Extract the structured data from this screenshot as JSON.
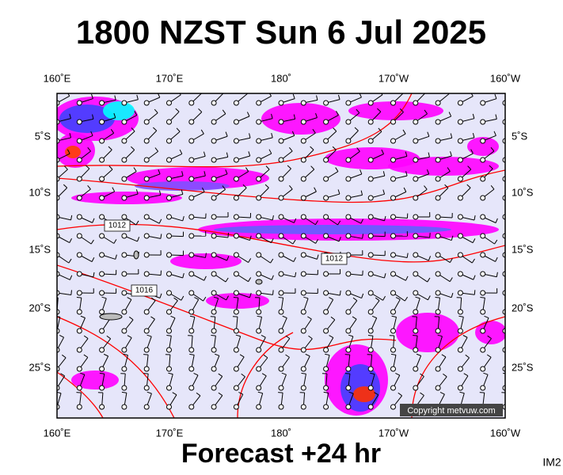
{
  "header": {
    "title": "1800 NZST Sun 6 Jul 2025"
  },
  "footer": {
    "forecast": "Forecast +24 hr",
    "id": "IM2"
  },
  "axes": {
    "lon_labels": [
      "160˚E",
      "170˚E",
      "180˚",
      "170˚W",
      "160˚W"
    ],
    "lat_labels": [
      "5˚S",
      "10˚S",
      "15˚S",
      "20˚S",
      "25˚S"
    ]
  },
  "isobar_labels": [
    "1012",
    "1012",
    "1016"
  ],
  "copyright": "Copyright metvuw.com"
}
